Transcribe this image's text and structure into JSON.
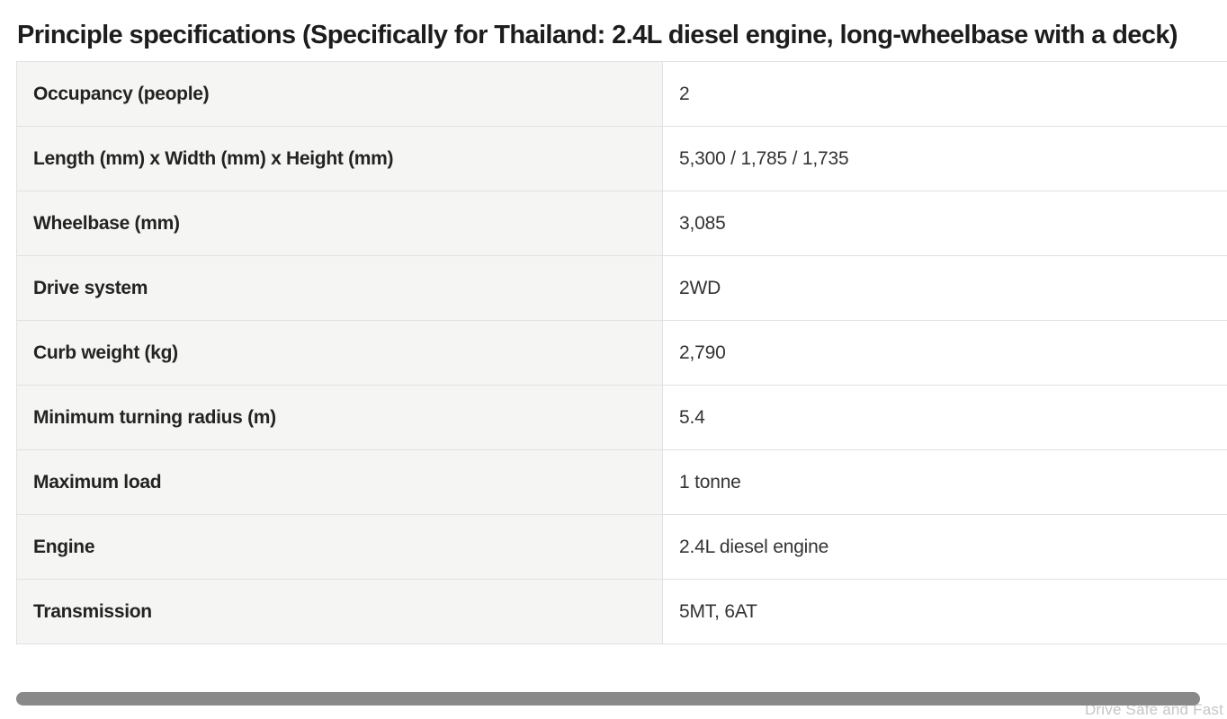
{
  "page": {
    "title": "Principle specifications (Specifically for Thailand: 2.4L diesel engine, long-wheelbase with a deck)",
    "watermark": "Drive Safe and Fast"
  },
  "spec_table": {
    "rows": [
      {
        "label": "Occupancy (people)",
        "value": "2"
      },
      {
        "label": "Length (mm) x Width (mm) x Height (mm)",
        "value": "5,300 / 1,785 / 1,735"
      },
      {
        "label": "Wheelbase (mm)",
        "value": "3,085"
      },
      {
        "label": "Drive system",
        "value": "2WD"
      },
      {
        "label": "Curb weight (kg)",
        "value": "2,790"
      },
      {
        "label": "Minimum turning radius (m)",
        "value": "5.4"
      },
      {
        "label": "Maximum load",
        "value": "1 tonne"
      },
      {
        "label": "Engine",
        "value": "2.4L diesel engine"
      },
      {
        "label": "Transmission",
        "value": "5MT, 6AT"
      }
    ]
  },
  "colors": {
    "label_cell_bg": "#f5f5f3",
    "value_cell_bg": "#ffffff",
    "border": "#e1e1df",
    "title_text": "#1d1d1d",
    "scrollbar_thumb": "#898989",
    "watermark_text": "#c6c6c6"
  }
}
